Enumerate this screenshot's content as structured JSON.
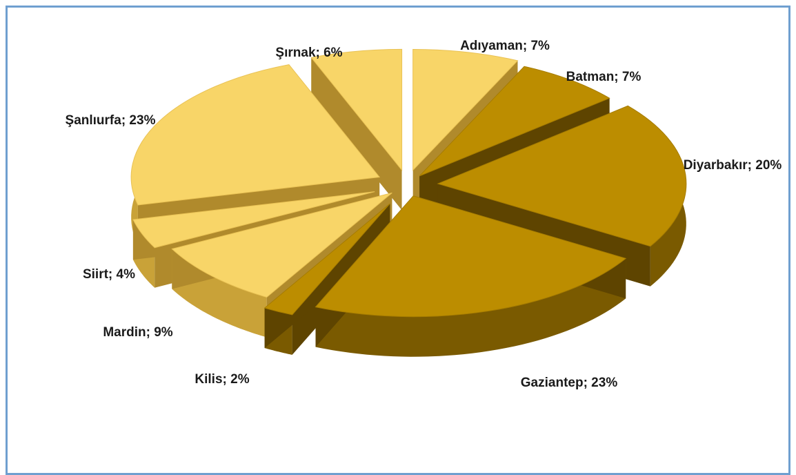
{
  "chart_data": {
    "type": "pie",
    "style": "3d-exploded",
    "title": "",
    "categories": [
      "Adıyaman",
      "Batman",
      "Diyarbakır",
      "Gaziantep",
      "Kilis",
      "Mardin",
      "Siirt",
      "Şanlıurfa",
      "Şırnak"
    ],
    "values": [
      7,
      7,
      20,
      23,
      2,
      9,
      4,
      23,
      6
    ],
    "labels": [
      "Adıyaman; 7%",
      "Batman; 7%",
      "Diyarbakır; 20%",
      "Gaziantep; 23%",
      "Kilis; 2%",
      "Mardin; 9%",
      "Siirt; 4%",
      "Şanlıurfa; 23%",
      "Şırnak; 6%"
    ],
    "colors": {
      "dark_gold": "#bc8d00",
      "dark_gold_side": "#7a5a00",
      "light_gold": "#f8d568",
      "light_gold_side": "#c9a238",
      "frame": "#6f9fd0"
    },
    "legend": "none"
  }
}
